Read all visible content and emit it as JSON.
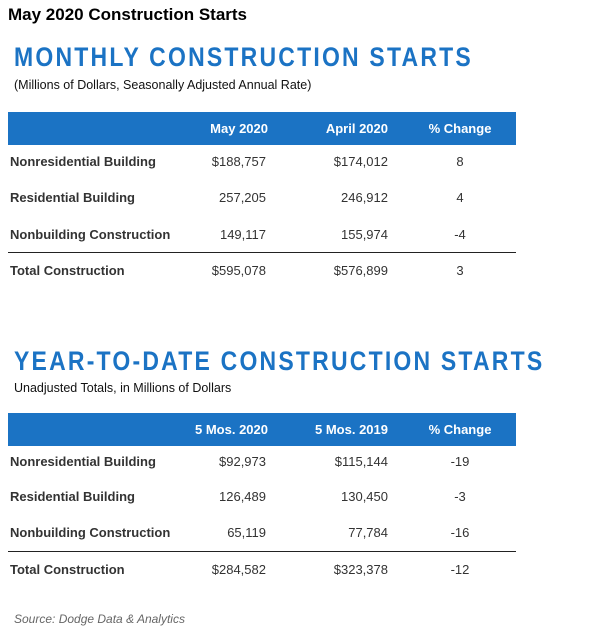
{
  "title": "May 2020 Construction Starts",
  "sections": [
    {
      "heading": "MONTHLY CONSTRUCTION STARTS",
      "subtitle": "(Millions of Dollars, Seasonally Adjusted Annual Rate)",
      "columns": [
        "May 2020",
        "April 2020",
        "% Change"
      ],
      "rows": [
        {
          "label": "Nonresidential Building",
          "values": [
            "$188,757",
            "$174,012",
            "8"
          ]
        },
        {
          "label": "Residential Building",
          "values": [
            "257,205",
            "246,912",
            "4"
          ]
        },
        {
          "label": "Nonbuilding Construction",
          "values": [
            "149,117",
            "155,974",
            "-4"
          ]
        }
      ],
      "total": {
        "label": "Total Construction",
        "values": [
          "$595,078",
          "$576,899",
          "3"
        ]
      }
    },
    {
      "heading": "YEAR-TO-DATE CONSTRUCTION STARTS",
      "subtitle": "Unadjusted Totals, in Millions of Dollars",
      "columns": [
        "5 Mos. 2020",
        "5 Mos. 2019",
        "% Change"
      ],
      "rows": [
        {
          "label": "Nonresidential Building",
          "values": [
            "$92,973",
            "$115,144",
            "-19"
          ]
        },
        {
          "label": "Residential Building",
          "values": [
            "126,489",
            "130,450",
            "-3"
          ]
        },
        {
          "label": "Nonbuilding Construction",
          "values": [
            "65,119",
            "77,784",
            "-16"
          ]
        }
      ],
      "total": {
        "label": "Total Construction",
        "values": [
          "$284,582",
          "$323,378",
          "-12"
        ]
      }
    }
  ],
  "source": "Source: Dodge Data & Analytics"
}
